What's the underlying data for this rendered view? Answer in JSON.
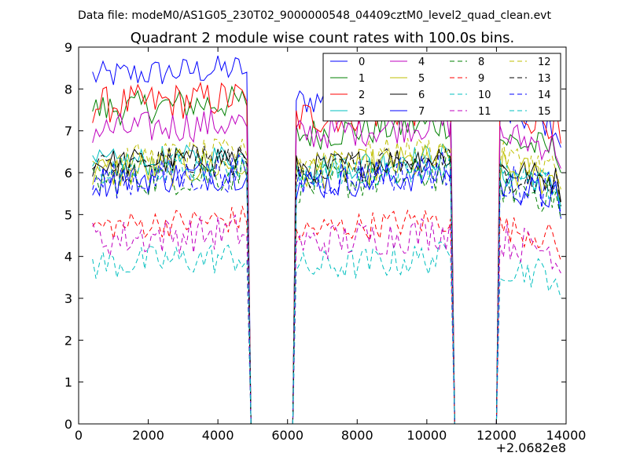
{
  "header": {
    "file_label": "Data file: modeM0/AS1G05_230T02_9000000548_04409cztM0_level2_quad_clean.evt"
  },
  "chart_data": {
    "type": "line",
    "title": "Quadrant 2 module wise count rates with 100.0s bins.",
    "xlabel": "",
    "ylabel": "",
    "x_offset_label": "+2.0682e8",
    "xlim": [
      0,
      14000
    ],
    "ylim": [
      0,
      9
    ],
    "xticks": [
      0,
      2000,
      4000,
      6000,
      8000,
      10000,
      12000,
      14000
    ],
    "yticks": [
      0,
      1,
      2,
      3,
      4,
      5,
      6,
      7,
      8,
      9
    ],
    "xtick_labels": [
      "0",
      "2000",
      "4000",
      "6000",
      "8000",
      "10000",
      "12000",
      "14000"
    ],
    "ytick_labels": [
      "0",
      "1",
      "2",
      "3",
      "4",
      "5",
      "6",
      "7",
      "8",
      "9"
    ],
    "grid": false,
    "legend_position": "top-right",
    "segments": [
      [
        400,
        4850
      ],
      [
        6150,
        10750
      ],
      [
        12050,
        13850
      ]
    ],
    "gaps": [
      [
        4850,
        6150
      ],
      [
        10750,
        12050
      ]
    ],
    "series": [
      {
        "name": "0",
        "color": "#0000ff",
        "dash": "solid",
        "levels": [
          8.3,
          7.7,
          7.4
        ]
      },
      {
        "name": "1",
        "color": "#008000",
        "dash": "solid",
        "levels": [
          7.5,
          6.9,
          6.8
        ]
      },
      {
        "name": "2",
        "color": "#ff0000",
        "dash": "solid",
        "levels": [
          7.6,
          7.3,
          7.5
        ]
      },
      {
        "name": "3",
        "color": "#00bfbf",
        "dash": "solid",
        "levels": [
          6.2,
          6.1,
          6.0
        ]
      },
      {
        "name": "4",
        "color": "#bf00bf",
        "dash": "solid",
        "levels": [
          7.0,
          6.9,
          6.9
        ]
      },
      {
        "name": "5",
        "color": "#bfbf00",
        "dash": "solid",
        "levels": [
          6.0,
          6.0,
          6.1
        ]
      },
      {
        "name": "6",
        "color": "#000000",
        "dash": "solid",
        "levels": [
          6.2,
          6.1,
          6.1
        ]
      },
      {
        "name": "7",
        "color": "#0000ff",
        "dash": "solid",
        "levels": [
          5.8,
          5.7,
          5.7
        ]
      },
      {
        "name": "8",
        "color": "#008000",
        "dash": "dashed",
        "levels": [
          5.8,
          5.7,
          5.7
        ]
      },
      {
        "name": "9",
        "color": "#ff0000",
        "dash": "dashed",
        "levels": [
          4.7,
          4.6,
          4.7
        ]
      },
      {
        "name": "10",
        "color": "#00bfbf",
        "dash": "dashed",
        "levels": [
          3.8,
          3.7,
          3.8
        ]
      },
      {
        "name": "11",
        "color": "#bf00bf",
        "dash": "dashed",
        "levels": [
          4.4,
          4.3,
          4.4
        ]
      },
      {
        "name": "12",
        "color": "#bfbf00",
        "dash": "dashed",
        "levels": [
          6.3,
          6.3,
          6.4
        ]
      },
      {
        "name": "13",
        "color": "#000000",
        "dash": "dashed",
        "levels": [
          6.1,
          6.0,
          6.0
        ]
      },
      {
        "name": "14",
        "color": "#0000ff",
        "dash": "dashed",
        "levels": [
          5.8,
          5.8,
          5.8
        ]
      },
      {
        "name": "15",
        "color": "#00bfbf",
        "dash": "dashed",
        "levels": [
          6.0,
          5.9,
          5.9
        ]
      }
    ]
  }
}
